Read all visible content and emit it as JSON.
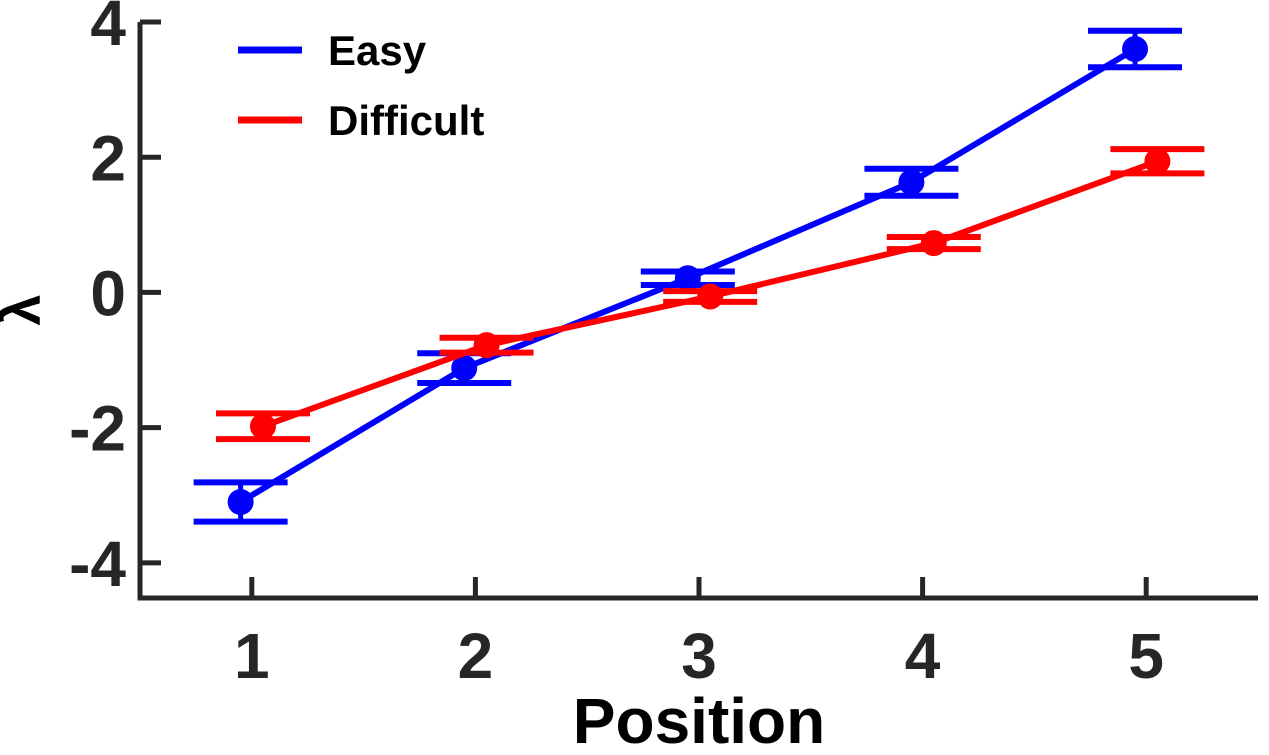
{
  "chart_data": {
    "type": "line",
    "title": "",
    "xlabel": "Position",
    "ylabel": "λ",
    "xlim": [
      0.5,
      5.5
    ],
    "ylim": [
      -4.52,
      4.0
    ],
    "xticks": [
      1,
      2,
      3,
      4,
      5
    ],
    "yticks": [
      -4,
      -2,
      0,
      2,
      4
    ],
    "grid": false,
    "legend_position": "top-left-inside",
    "legend_frame": false,
    "axis_color": "#262626",
    "tick_label_color": "#262626",
    "text_color": "#000000",
    "background_color": "#ffffff",
    "series": [
      {
        "name": "Easy",
        "color": "#0000ff",
        "marker": "circle",
        "x": [
          0.95,
          1.95,
          2.95,
          3.95,
          4.95
        ],
        "y": [
          -3.1,
          -1.12,
          0.21,
          1.63,
          3.6
        ],
        "yerr": [
          0.29,
          0.22,
          0.1,
          0.2,
          0.27
        ]
      },
      {
        "name": "Difficult",
        "color": "#ff0000",
        "marker": "circle",
        "x": [
          1.05,
          2.05,
          3.05,
          4.05,
          5.05
        ],
        "y": [
          -1.98,
          -0.78,
          -0.06,
          0.73,
          1.94
        ],
        "yerr": [
          0.19,
          0.11,
          0.08,
          0.09,
          0.18
        ]
      }
    ]
  }
}
